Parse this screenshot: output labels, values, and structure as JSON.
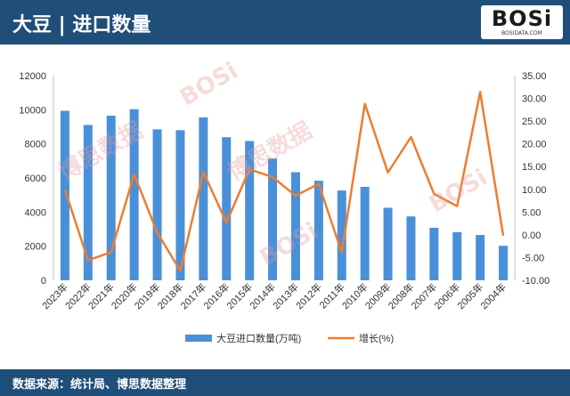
{
  "header": {
    "title": "大豆 | 进口数量"
  },
  "logo": {
    "text": "BOSi",
    "sub": "BOSIDATA.COM"
  },
  "watermarks": [
    "BOSi",
    "BOSi",
    "BOSi",
    "博思数据",
    "博思数据"
  ],
  "footer": {
    "source": "数据来源：统计局、博思数据整理"
  },
  "colors": {
    "header_bg": "#1f4e79",
    "bar": "#4a90d9",
    "line": "#ed7d31"
  },
  "chart_data": {
    "type": "bar",
    "categories": [
      "2023年",
      "2022年",
      "2021年",
      "2020年",
      "2019年",
      "2018年",
      "2017年",
      "2016年",
      "2015年",
      "2014年",
      "2013年",
      "2012年",
      "2011年",
      "2010年",
      "2009年",
      "2008年",
      "2007年",
      "2006年",
      "2005年",
      "2004年"
    ],
    "series": [
      {
        "name": "大豆进口数量(万吨)",
        "type": "bar",
        "axis": "left",
        "values": [
          9941,
          9108,
          9652,
          10033,
          8851,
          8803,
          9553,
          8391,
          8169,
          7140,
          6338,
          5838,
          5264,
          5480,
          4255,
          3744,
          3082,
          2827,
          2659,
          2023
        ]
      },
      {
        "name": "增长(%)",
        "type": "line",
        "axis": "right",
        "values": [
          9.9,
          -5.6,
          -3.8,
          13.3,
          0.5,
          -7.9,
          13.8,
          2.7,
          14.4,
          12.7,
          8.6,
          11.2,
          -3.9,
          28.8,
          13.7,
          21.5,
          9.0,
          6.3,
          31.4,
          -0.2
        ]
      }
    ],
    "y_left": {
      "ticks": [
        "0",
        "2000",
        "4000",
        "6000",
        "8000",
        "10000",
        "12000"
      ],
      "range": [
        0,
        12000
      ]
    },
    "y_right": {
      "ticks": [
        "-10.00",
        "-5.00",
        "0.00",
        "5.00",
        "10.00",
        "15.00",
        "20.00",
        "25.00",
        "30.00",
        "35.00"
      ],
      "range": [
        -10,
        35
      ]
    },
    "grid": false,
    "legend": {
      "position": "bottom",
      "items": [
        "大豆进口数量(万吨)",
        "增长(%)"
      ]
    }
  }
}
